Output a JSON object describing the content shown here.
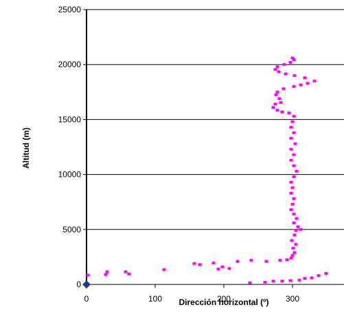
{
  "chart_data": {
    "type": "scatter",
    "xlabel": "Dirección horizontal (º)",
    "ylabel": "Altitud (m)",
    "xlim": [
      0,
      360
    ],
    "ylim": [
      0,
      25000
    ],
    "x_ticks": [
      "0",
      "100",
      "200",
      "300"
    ],
    "y_ticks": [
      "0",
      "5000",
      "10000",
      "15000",
      "20000",
      "25000"
    ],
    "grid": "horizontal",
    "legend": "none",
    "colors": {
      "series": "#ff00ff",
      "marker": "#1f3a8a",
      "grid": "#000000"
    },
    "series": [
      {
        "marker": "square",
        "color": "#ff00ff",
        "points": [
          [
            2,
            850
          ],
          [
            28,
            900
          ],
          [
            30,
            1150
          ],
          [
            57,
            1150
          ],
          [
            62,
            950
          ],
          [
            113,
            1350
          ],
          [
            157,
            1900
          ],
          [
            165,
            1800
          ],
          [
            185,
            1950
          ],
          [
            192,
            1400
          ],
          [
            198,
            1600
          ],
          [
            208,
            1450
          ],
          [
            220,
            2100
          ],
          [
            240,
            2200
          ],
          [
            262,
            2100
          ],
          [
            282,
            2200
          ],
          [
            292,
            2250
          ],
          [
            298,
            2400
          ],
          [
            300,
            2650
          ],
          [
            303,
            2900
          ],
          [
            301,
            3300
          ],
          [
            305,
            3650
          ],
          [
            299,
            4000
          ],
          [
            303,
            4500
          ],
          [
            305,
            4900
          ],
          [
            312,
            5000
          ],
          [
            308,
            5250
          ],
          [
            302,
            5600
          ],
          [
            306,
            6000
          ],
          [
            302,
            6400
          ],
          [
            298,
            6800
          ],
          [
            300,
            7300
          ],
          [
            302,
            7800
          ],
          [
            298,
            8300
          ],
          [
            300,
            8800
          ],
          [
            298,
            9300
          ],
          [
            302,
            9800
          ],
          [
            306,
            10300
          ],
          [
            302,
            10800
          ],
          [
            298,
            11300
          ],
          [
            302,
            11800
          ],
          [
            298,
            12300
          ],
          [
            304,
            12800
          ],
          [
            298,
            13300
          ],
          [
            302,
            13800
          ],
          [
            298,
            14300
          ],
          [
            300,
            14800
          ],
          [
            302,
            15300
          ],
          [
            295,
            15600
          ],
          [
            285,
            15700
          ],
          [
            278,
            15850
          ],
          [
            272,
            16100
          ],
          [
            275,
            16400
          ],
          [
            283,
            16550
          ],
          [
            281,
            16900
          ],
          [
            276,
            17250
          ],
          [
            278,
            17500
          ],
          [
            287,
            17800
          ],
          [
            302,
            18000
          ],
          [
            312,
            18150
          ],
          [
            322,
            18300
          ],
          [
            332,
            18500
          ],
          [
            318,
            18800
          ],
          [
            303,
            19000
          ],
          [
            290,
            19150
          ],
          [
            280,
            19350
          ],
          [
            275,
            19550
          ],
          [
            278,
            19800
          ],
          [
            288,
            20000
          ],
          [
            297,
            20200
          ],
          [
            302,
            20450
          ],
          [
            300,
            20600
          ],
          [
            238,
            150
          ],
          [
            260,
            200
          ],
          [
            272,
            300
          ],
          [
            285,
            300
          ],
          [
            297,
            350
          ],
          [
            310,
            400
          ],
          [
            318,
            550
          ],
          [
            328,
            600
          ],
          [
            338,
            800
          ],
          [
            349,
            1000
          ]
        ]
      },
      {
        "marker": "diamond",
        "color": "#1f3a8a",
        "points": [
          [
            0,
            0
          ]
        ]
      }
    ]
  }
}
